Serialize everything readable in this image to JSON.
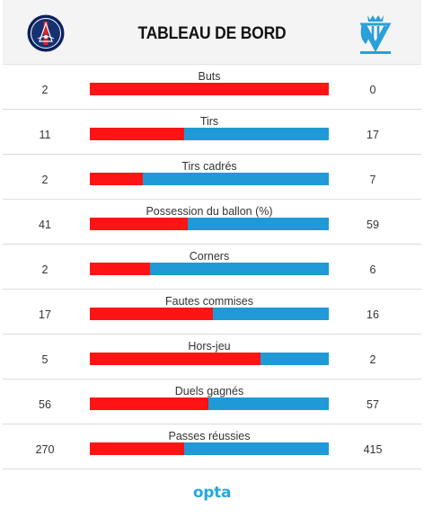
{
  "header": {
    "title": "TABLEAU DE BORD",
    "home_logo": "psg-crest-icon",
    "away_logo": "om-crest-icon"
  },
  "colors": {
    "home": "#fe1414",
    "away": "#1f9ad6",
    "brand": "#24a9e1"
  },
  "stats": [
    {
      "label": "Buts",
      "home": "2",
      "away": "0",
      "home_share": 1.0
    },
    {
      "label": "Tirs",
      "home": "11",
      "away": "17",
      "home_share": 0.393
    },
    {
      "label": "Tirs cadrés",
      "home": "2",
      "away": "7",
      "home_share": 0.222
    },
    {
      "label": "Possession du ballon (%)",
      "home": "41",
      "away": "59",
      "home_share": 0.41
    },
    {
      "label": "Corners",
      "home": "2",
      "away": "6",
      "home_share": 0.25
    },
    {
      "label": "Fautes commises",
      "home": "17",
      "away": "16",
      "home_share": 0.515
    },
    {
      "label": "Hors-jeu",
      "home": "5",
      "away": "2",
      "home_share": 0.714
    },
    {
      "label": "Duels gagnés",
      "home": "56",
      "away": "57",
      "home_share": 0.496
    },
    {
      "label": "Passes réussies",
      "home": "270",
      "away": "415",
      "home_share": 0.394
    }
  ],
  "footer": {
    "brand": "opta"
  }
}
